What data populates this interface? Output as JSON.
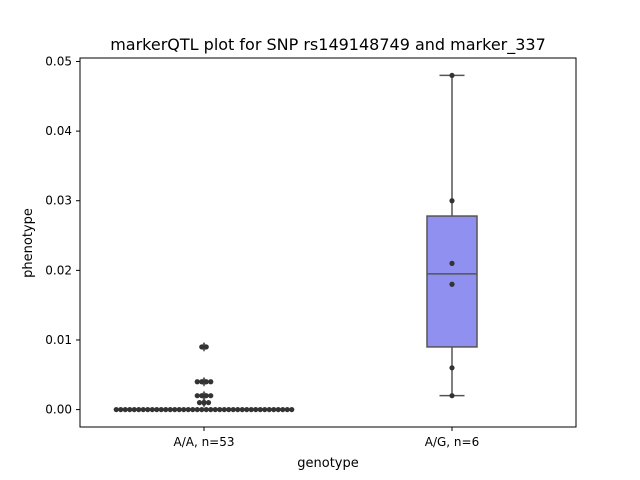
{
  "chart_data": {
    "type": "box",
    "title": "markerQTL plot for SNP rs149148749 and marker_337",
    "xlabel": "genotype",
    "ylabel": "phenotype",
    "ylim": [
      -0.0025,
      0.0505
    ],
    "yticks": [
      "0.00",
      "0.01",
      "0.02",
      "0.03",
      "0.04",
      "0.05"
    ],
    "ytick_values": [
      0,
      0.01,
      0.02,
      0.03,
      0.04,
      0.05
    ],
    "categories": [
      "A/A, n=53",
      "A/G, n=6"
    ],
    "box_color": "#9090f0",
    "box_stats": [
      {
        "category": "A/A, n=53",
        "q1": 0,
        "median": 0,
        "q3": 0,
        "whisker_low": 0,
        "whisker_high": 0,
        "outliers": [
          0.009,
          0.004,
          0.002,
          0.001
        ]
      },
      {
        "category": "A/G, n=6",
        "q1": 0.009,
        "median": 0.0195,
        "q3": 0.0278,
        "whisker_low": 0.002,
        "whisker_high": 0.048,
        "outliers": []
      }
    ],
    "points": [
      {
        "category": "A/A, n=53",
        "values": [
          0.009,
          0.009,
          0.004,
          0.004,
          0.004,
          0.004,
          0.002,
          0.002,
          0.002,
          0.002,
          0.001,
          0.001,
          0.001,
          0,
          0,
          0,
          0,
          0,
          0,
          0,
          0,
          0,
          0,
          0,
          0,
          0,
          0,
          0,
          0,
          0,
          0,
          0,
          0,
          0,
          0,
          0,
          0,
          0,
          0,
          0,
          0,
          0,
          0,
          0,
          0,
          0,
          0,
          0,
          0,
          0,
          0,
          0,
          0
        ]
      },
      {
        "category": "A/G, n=6",
        "values": [
          0.048,
          0.03,
          0.021,
          0.018,
          0.006,
          0.002
        ]
      }
    ]
  }
}
